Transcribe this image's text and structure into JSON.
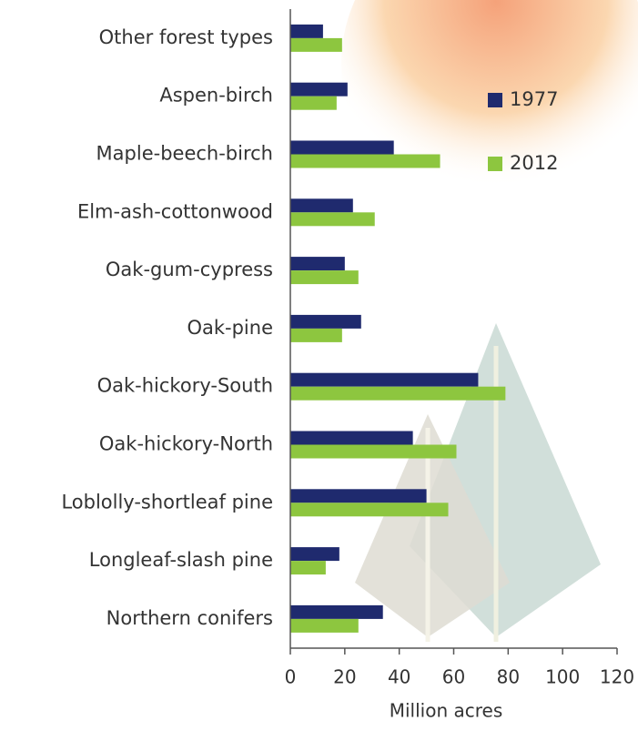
{
  "chart_data": {
    "type": "bar",
    "orientation": "horizontal",
    "categories": [
      "Other forest types",
      "Aspen-birch",
      "Maple-beech-birch",
      "Elm-ash-cottonwood",
      "Oak-gum-cypress",
      "Oak-pine",
      "Oak-hickory-South",
      "Oak-hickory-North",
      "Loblolly-shortleaf pine",
      "Longleaf-slash pine",
      "Northern conifers"
    ],
    "series": [
      {
        "name": "1977",
        "color": "#1f2a6e",
        "values": [
          12,
          21,
          38,
          23,
          20,
          26,
          69,
          45,
          50,
          18,
          34
        ]
      },
      {
        "name": "2012",
        "color": "#8dc63f",
        "values": [
          19,
          17,
          55,
          31,
          25,
          19,
          79,
          61,
          58,
          13,
          25
        ]
      }
    ],
    "x_label": "Million acres",
    "xlim": [
      0,
      120
    ],
    "xticks": [
      0,
      20,
      40,
      60,
      80,
      100,
      120
    ],
    "grid": false,
    "legend": "upper right"
  }
}
